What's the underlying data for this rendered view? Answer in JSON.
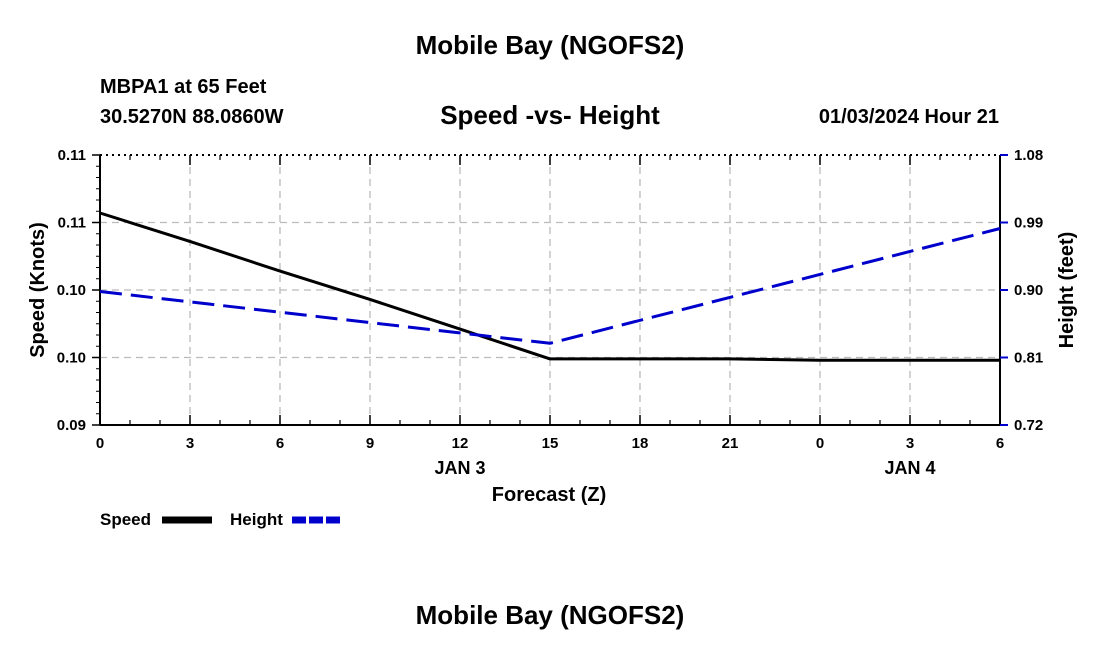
{
  "header": {
    "title": "Mobile Bay (NGOFS2)",
    "station": "MBPA1 at 65 Feet",
    "coords": "30.5270N  88.0860W",
    "subtitle": "Speed -vs- Height",
    "date": "01/03/2024 Hour 21"
  },
  "footer": {
    "title": "Mobile Bay (NGOFS2)"
  },
  "chart_data": {
    "type": "line",
    "xlabel": "Forecast (Z)",
    "ylabel_left": "Speed (Knots)",
    "ylabel_right": "Height (feet)",
    "x_ticks": [
      "0",
      "3",
      "6",
      "9",
      "12",
      "15",
      "18",
      "21",
      "0",
      "3",
      "6"
    ],
    "x_range": [
      0,
      30
    ],
    "date_labels": [
      {
        "x": 12,
        "text": "JAN 3"
      },
      {
        "x": 27,
        "text": "JAN 4"
      }
    ],
    "left_axis": {
      "range": [
        0.09,
        0.11
      ],
      "tick_labels": [
        "0.09",
        "0.10",
        "0.10",
        "0.11",
        "0.11"
      ]
    },
    "right_axis": {
      "range": [
        0.72,
        1.08
      ],
      "tick_labels": [
        "0.72",
        "0.81",
        "0.90",
        "0.99",
        "1.08"
      ]
    },
    "grid": true,
    "legend_position": "bottom-left",
    "series": [
      {
        "name": "Speed",
        "axis": "left",
        "color": "#000000",
        "dash": "solid",
        "x": [
          0,
          3,
          6,
          9,
          12,
          15,
          18,
          21,
          24,
          27,
          30
        ],
        "y": [
          0.1057,
          0.1036,
          0.1014,
          0.0993,
          0.0971,
          0.0949,
          0.0949,
          0.0949,
          0.0948,
          0.0948,
          0.0948
        ]
      },
      {
        "name": "Height",
        "axis": "right",
        "color": "#0000cc",
        "dash": "dashed",
        "x": [
          0,
          15,
          30
        ],
        "y": [
          0.898,
          0.829,
          0.982
        ]
      }
    ]
  }
}
